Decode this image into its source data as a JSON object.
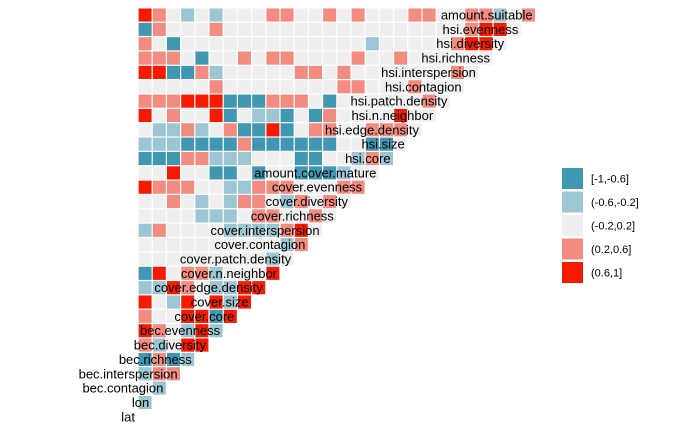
{
  "chart_data": {
    "type": "heatmap",
    "title": "",
    "variables": [
      "lat",
      "lon",
      "bec.contagion",
      "bec.interspersion",
      "bec.richness",
      "bec.diversity",
      "bec.evenness",
      "cover.core",
      "cover.size",
      "cover.edge.density",
      "cover.n.neighbor",
      "cover.patch.density",
      "cover.contagion",
      "cover.interspersion",
      "cover.richness",
      "cover.diversity",
      "cover.evenness",
      "amount.cover.mature",
      "hsi.core",
      "hsi.size",
      "hsi.edge.density",
      "hsi.n.neighbor",
      "hsi.patch.density",
      "hsi.contagion",
      "hsi.interspersion",
      "hsi.richness",
      "hsi.diversity",
      "hsi.evenness",
      "amount.suitable"
    ],
    "value_encoding": "0:[-1,-0.6], 1:(-0.6,-0.2], 2:(-0.2,0.2], 3:(0.2,0.6], 4:(0.6,1]",
    "legend": {
      "position": "right",
      "bins": [
        "[-1,-0.6]",
        "(-0.6,-0.2]",
        "(-0.2,0.2]",
        "(0.2,0.6]",
        "(0.6,1]"
      ]
    },
    "colors": [
      "#3f97b2",
      "#9cc6d3",
      "#efefef",
      "#f28b80",
      "#f61b00"
    ],
    "rows": [
      "1",
      "21",
      "133",
      "0301",
      "31244",
      "432141",
      "3224404",
      "42142414",
      "114321144",
      "0423312224",
      "22222222212",
      "222222222213",
      "1322221111342",
      "22221112332232",
      "223212133213232",
      "4333221133322233",
      "22422002022000122",
      "000331112220022131",
      "1110000300000022002",
      "21131230040233223332",
      "423224021102032222422",
      "3334440003332022222232",
      "22222322222222332223222",
      "440031222223323222222232",
      "3332022323322223223222222",
      "32022222222222221222223442",
      "032223222222222222222223442",
      "4321212223322323222332233123"
    ]
  }
}
